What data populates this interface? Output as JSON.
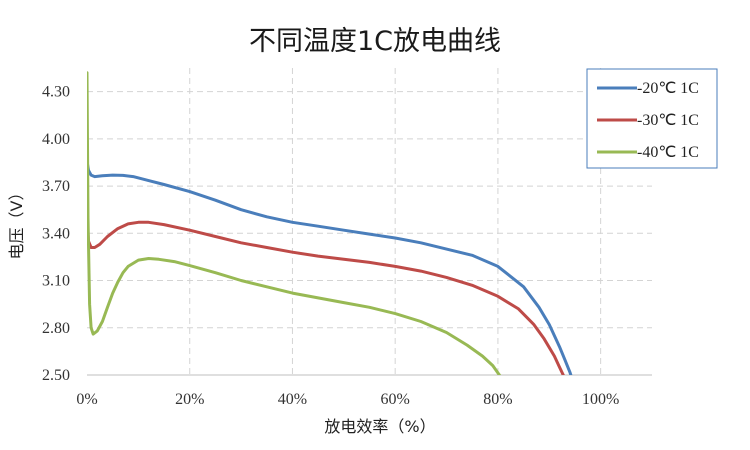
{
  "chart_data": {
    "type": "line",
    "title": "不同温度1C放电曲线",
    "xlabel": "放电效率（%）",
    "ylabel": "电压（V）",
    "xlim": [
      0,
      110
    ],
    "ylim": [
      2.5,
      4.45
    ],
    "x_ticks": [
      0,
      20,
      40,
      60,
      80,
      100
    ],
    "x_tick_labels": [
      "0%",
      "20%",
      "40%",
      "60%",
      "80%",
      "100%"
    ],
    "y_ticks": [
      2.5,
      2.8,
      3.1,
      3.4,
      3.7,
      4.0,
      4.3
    ],
    "y_tick_labels": [
      "2.50",
      "2.80",
      "3.10",
      "3.40",
      "3.70",
      "4.00",
      "4.30"
    ],
    "grid": "dashed",
    "legend_position": "top-right",
    "series": [
      {
        "name": "-20℃ 1C",
        "color": "#4a7ebb",
        "x": [
          0,
          0.3,
          0.8,
          1.5,
          3,
          5,
          7,
          9,
          12,
          15,
          20,
          25,
          30,
          35,
          40,
          45,
          50,
          55,
          60,
          65,
          70,
          75,
          80,
          85,
          88,
          90,
          92,
          93,
          94,
          94.5
        ],
        "y": [
          3.86,
          3.8,
          3.77,
          3.76,
          3.765,
          3.77,
          3.768,
          3.76,
          3.735,
          3.71,
          3.665,
          3.61,
          3.55,
          3.505,
          3.47,
          3.445,
          3.42,
          3.395,
          3.37,
          3.34,
          3.3,
          3.26,
          3.19,
          3.06,
          2.93,
          2.82,
          2.68,
          2.6,
          2.52,
          2.47
        ]
      },
      {
        "name": "-30℃ 1C",
        "color": "#be4b48",
        "x": [
          0,
          0.3,
          0.8,
          1.5,
          2.5,
          4,
          6,
          8,
          10,
          12,
          15,
          20,
          25,
          30,
          35,
          40,
          45,
          50,
          55,
          60,
          65,
          70,
          75,
          80,
          84,
          87,
          89,
          91,
          92,
          93
        ],
        "y": [
          3.5,
          3.35,
          3.31,
          3.31,
          3.33,
          3.38,
          3.43,
          3.46,
          3.47,
          3.47,
          3.455,
          3.42,
          3.38,
          3.34,
          3.31,
          3.28,
          3.255,
          3.235,
          3.215,
          3.19,
          3.16,
          3.12,
          3.07,
          3.0,
          2.92,
          2.82,
          2.73,
          2.62,
          2.55,
          2.48
        ]
      },
      {
        "name": "-40℃ 1C",
        "color": "#98b954",
        "x": [
          0,
          0.2,
          0.5,
          0.8,
          1.2,
          2,
          3,
          4,
          5,
          6,
          7,
          8,
          10,
          12,
          14,
          17,
          20,
          25,
          30,
          35,
          40,
          45,
          50,
          55,
          60,
          65,
          70,
          74,
          77,
          79,
          80.5
        ],
        "y": [
          4.42,
          3.5,
          2.95,
          2.8,
          2.76,
          2.78,
          2.84,
          2.93,
          3.02,
          3.09,
          3.15,
          3.19,
          3.23,
          3.24,
          3.235,
          3.22,
          3.195,
          3.15,
          3.1,
          3.06,
          3.02,
          2.99,
          2.96,
          2.93,
          2.89,
          2.84,
          2.77,
          2.69,
          2.62,
          2.56,
          2.49
        ]
      }
    ]
  }
}
